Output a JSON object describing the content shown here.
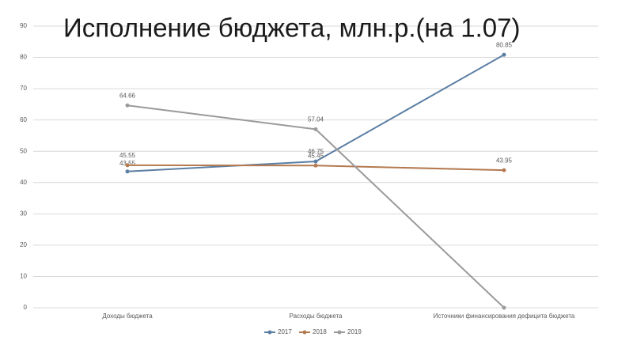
{
  "chart_data": {
    "type": "line",
    "title": "Исполнение бюджета, млн.р.(на 1.07)",
    "categories": [
      "Доходы бюджета",
      "Расходы бюджета",
      "Источники финансирования дефицита бюджета"
    ],
    "series": [
      {
        "name": "2017",
        "color": "#5b7ea4",
        "values": [
          43.55,
          46.75,
          80.85
        ]
      },
      {
        "name": "2018",
        "color": "#b47a50",
        "values": [
          45.55,
          45.45,
          43.95
        ]
      },
      {
        "name": "2019",
        "color": "#9a9a9a",
        "values": [
          64.66,
          57.04,
          0
        ],
        "value_labels": [
          "64.66",
          "57.04",
          null
        ]
      }
    ],
    "ylim": [
      0,
      90
    ],
    "yticks": [
      0,
      10,
      20,
      30,
      40,
      50,
      60,
      70,
      80,
      90
    ],
    "grid": true,
    "legend": "bottom"
  }
}
